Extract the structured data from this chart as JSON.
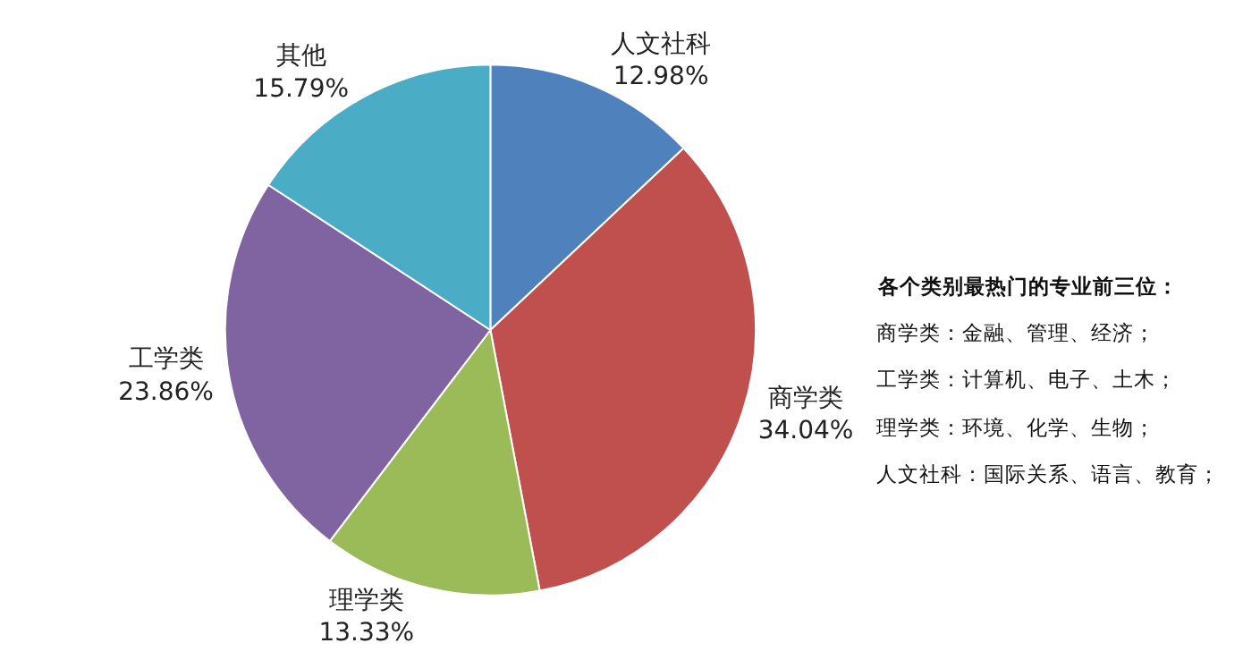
{
  "chart_data": {
    "type": "pie",
    "categories": [
      "人文社科",
      "商学类",
      "理学类",
      "工学类",
      "其他"
    ],
    "values": [
      12.98,
      34.04,
      13.33,
      23.86,
      15.79
    ],
    "value_labels": [
      "12.98%",
      "34.04%",
      "13.33%",
      "23.86%",
      "15.79%"
    ],
    "colors": [
      "#4f81bd",
      "#c0504d",
      "#9bbb59",
      "#8064a2",
      "#4bacc6"
    ],
    "legend": false,
    "annotations": [
      "各个类别最热门的专业前三位：",
      "商学类：金融、管理、经济；",
      "工学类：计算机、电子、土木；",
      "理学类：环境、化学、生物；",
      "人文社科：国际关系、语言、教育；"
    ]
  }
}
